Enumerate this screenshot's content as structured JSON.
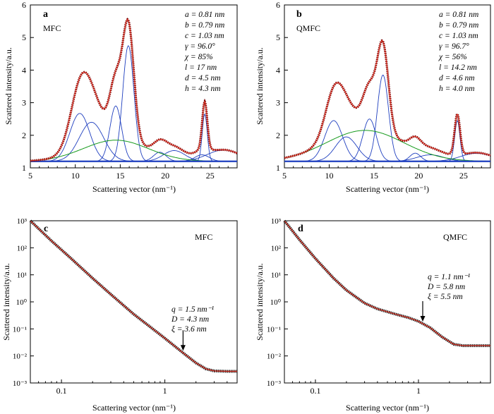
{
  "figure": {
    "x_axis_label_top": "Scattering vector (nm⁻¹)",
    "x_axis_label_bottom": "Scattering vector (nm⁻¹)",
    "y_axis_label": "Scattered intensity/a.u."
  },
  "chart_data": [
    {
      "panel": "a",
      "type": "line",
      "sample_label": "MFC",
      "xlabel": "Scattering vector (nm⁻¹)",
      "ylabel": "Scattered intensity/a.u.",
      "xlim": [
        5,
        28
      ],
      "ylim": [
        1,
        6
      ],
      "xticks": [
        5,
        10,
        15,
        20,
        25
      ],
      "yticks": [
        1,
        2,
        3,
        4,
        5,
        6
      ],
      "params": [
        "a = 0.81 nm",
        "b = 0.79 nm",
        "c = 1.03 nm",
        "γ = 96.0°",
        "χ = 85%",
        "l = 17 nm",
        "d = 4.5 nm",
        "h = 4.3 nm"
      ],
      "baseline": 1.2,
      "peaks": [
        {
          "center": 10.5,
          "height": 1.47,
          "width": 1.1
        },
        {
          "center": 11.8,
          "height": 1.2,
          "width": 1.35
        },
        {
          "center": 14.5,
          "height": 1.7,
          "width": 0.65
        },
        {
          "center": 15.9,
          "height": 3.55,
          "width": 0.62
        },
        {
          "center": 19.4,
          "height": 0.28,
          "width": 0.7
        },
        {
          "center": 21.0,
          "height": 0.33,
          "width": 1.2
        },
        {
          "center": 24.1,
          "height": 0.2,
          "width": 0.8
        },
        {
          "center": 24.4,
          "height": 1.45,
          "width": 0.28
        },
        {
          "center": 26.5,
          "height": 0.35,
          "width": 1.8
        }
      ],
      "amorphous": {
        "center": 14.5,
        "height": 0.65,
        "width": 3.6
      },
      "colors": {
        "measured": "#7a0000",
        "fit": "#e03020",
        "peaks": "#1f3fbf",
        "amorphous": "#169a1c"
      }
    },
    {
      "panel": "b",
      "type": "line",
      "sample_label": "QMFC",
      "xlabel": "Scattering vector (nm⁻¹)",
      "ylabel": "Scattered intensity/a.u.",
      "xlim": [
        5,
        28
      ],
      "ylim": [
        1,
        6
      ],
      "xticks": [
        5,
        10,
        15,
        20,
        25
      ],
      "yticks": [
        1,
        2,
        3,
        4,
        5,
        6
      ],
      "params": [
        "a = 0.81 nm",
        "b = 0.79 nm",
        "c = 1.03 nm",
        "γ = 96.7°",
        "χ = 56%",
        "l = 14.2 nm",
        "d = 4.6 nm",
        "h = 4.0 nm"
      ],
      "baseline": 1.2,
      "peaks": [
        {
          "center": 10.5,
          "height": 1.25,
          "width": 1.0
        },
        {
          "center": 11.9,
          "height": 0.75,
          "width": 1.2
        },
        {
          "center": 14.5,
          "height": 1.3,
          "width": 0.75
        },
        {
          "center": 16.0,
          "height": 2.65,
          "width": 0.62
        },
        {
          "center": 19.6,
          "height": 0.25,
          "width": 0.6
        },
        {
          "center": 21.3,
          "height": 0.2,
          "width": 1.5
        },
        {
          "center": 24.3,
          "height": 1.25,
          "width": 0.3
        },
        {
          "center": 26.5,
          "height": 0.25,
          "width": 1.8
        }
      ],
      "amorphous": {
        "center": 14.0,
        "height": 0.95,
        "width": 4.3
      },
      "colors": {
        "measured": "#7a0000",
        "fit": "#e03020",
        "peaks": "#1f3fbf",
        "amorphous": "#169a1c"
      }
    },
    {
      "panel": "c",
      "type": "line",
      "sample_label": "MFC",
      "xlabel": "Scattering vector (nm⁻¹)",
      "ylabel": "Scattered intensity/a.u.",
      "x_scale": "log",
      "y_scale": "log",
      "xlim": [
        0.05,
        5
      ],
      "ylim": [
        0.001,
        1000
      ],
      "xticks": [
        0.1,
        1
      ],
      "yticks": [
        0.001,
        0.01,
        0.1,
        1,
        10,
        100,
        1000
      ],
      "params": [
        "q = 1.5 nm⁻¹",
        "D = 4.3 nm",
        "ξ = 3.6 nm"
      ],
      "arrow_q": 1.5,
      "x": [
        0.05,
        0.08,
        0.12,
        0.2,
        0.3,
        0.5,
        0.7,
        1.0,
        1.5,
        2.0,
        2.5,
        3.0,
        4.0,
        5.0
      ],
      "y": [
        1000,
        180,
        45,
        7.5,
        1.9,
        0.35,
        0.13,
        0.045,
        0.013,
        0.0055,
        0.0033,
        0.0028,
        0.0027,
        0.0027
      ],
      "colors": {
        "measured": "#222222",
        "fit": "#c0281c"
      }
    },
    {
      "panel": "d",
      "type": "line",
      "sample_label": "QMFC",
      "xlabel": "Scattering vector (nm⁻¹)",
      "ylabel": "Scattered intensity/a.u.",
      "x_scale": "log",
      "y_scale": "log",
      "xlim": [
        0.05,
        5
      ],
      "ylim": [
        0.001,
        1000
      ],
      "xticks": [
        0.1,
        1
      ],
      "yticks": [
        0.001,
        0.01,
        0.1,
        1,
        10,
        100,
        1000
      ],
      "params": [
        "q = 1.1 nm⁻¹",
        "D = 5.8 nm",
        "ξ = 5.5 nm"
      ],
      "arrow_q": 1.1,
      "x": [
        0.05,
        0.07,
        0.1,
        0.15,
        0.2,
        0.3,
        0.4,
        0.6,
        0.8,
        1.0,
        1.3,
        1.7,
        2.2,
        2.7,
        3.5,
        5.0
      ],
      "y": [
        1000,
        200,
        40,
        7.5,
        2.7,
        0.9,
        0.55,
        0.35,
        0.26,
        0.19,
        0.11,
        0.05,
        0.027,
        0.024,
        0.024,
        0.024
      ],
      "colors": {
        "measured": "#222222",
        "fit": "#c0281c"
      }
    }
  ]
}
